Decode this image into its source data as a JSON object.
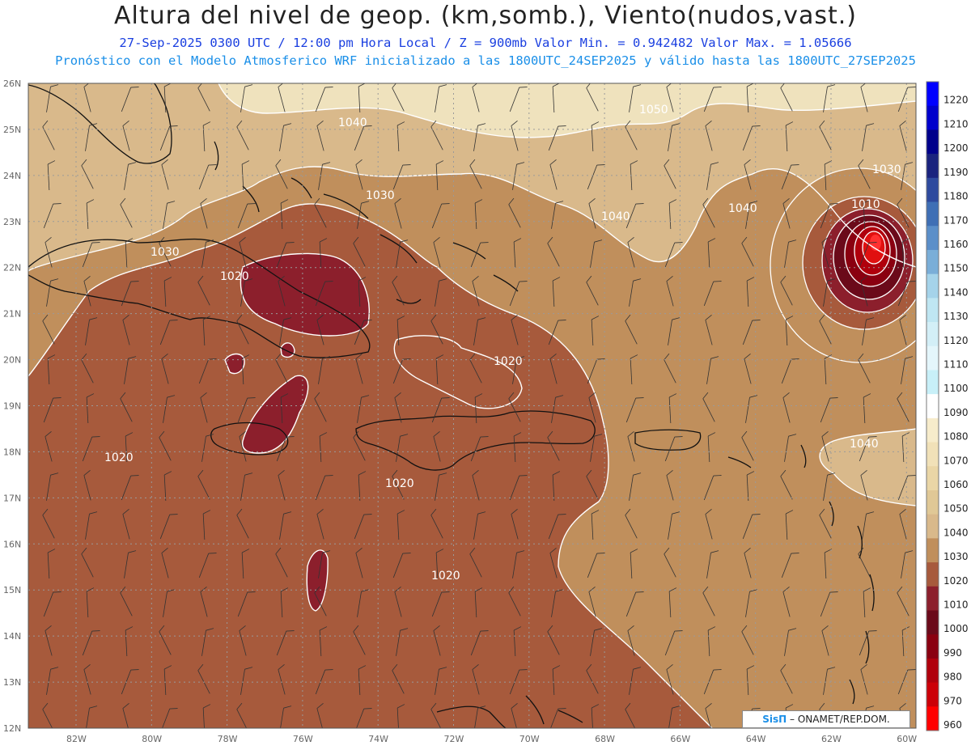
{
  "header": {
    "title": "Altura del nivel de geop. (km,somb.), Viento(nudos,vast.)",
    "subtitle": "27-Sep-2025  0300 UTC / 12:00 pm Hora Local / Z = 900mb   Valor Min. = 0.942482  Valor Max. = 1.05666",
    "model_line": "Pronóstico con el Modelo Atmosferico WRF inicializado a las 1800UTC_24SEP2025 y válido hasta las  1800UTC_27SEP2025"
  },
  "map": {
    "lat_labels": [
      "26N",
      "25N",
      "24N",
      "23N",
      "22N",
      "21N",
      "20N",
      "19N",
      "18N",
      "17N",
      "16N",
      "15N",
      "14N",
      "13N",
      "12N"
    ],
    "lon_labels": [
      "82W",
      "80W",
      "78W",
      "76W",
      "74W",
      "72W",
      "70W",
      "68W",
      "66W",
      "64W",
      "62W",
      "60W"
    ],
    "contour_labels": [
      {
        "text": "1040",
        "id": "c1040-nw"
      },
      {
        "text": "1050",
        "id": "c1050-n"
      },
      {
        "text": "1030",
        "id": "c1030-bahamas"
      },
      {
        "text": "1040",
        "id": "c1040-center"
      },
      {
        "text": "1040",
        "id": "c1040-ne"
      },
      {
        "text": "1030",
        "id": "c1030-ne"
      },
      {
        "text": "1010",
        "id": "c1010-hurricane"
      },
      {
        "text": "1030",
        "id": "c1030-w"
      },
      {
        "text": "1020",
        "id": "c1020-cuba"
      },
      {
        "text": "1020",
        "id": "c1020-hisp"
      },
      {
        "text": "1020",
        "id": "c1020-sw"
      },
      {
        "text": "1020",
        "id": "c1020-s1"
      },
      {
        "text": "1020",
        "id": "c1020-s2"
      },
      {
        "text": "1040",
        "id": "c1040-e"
      }
    ],
    "colors": {
      "c1050": "#efe2bd",
      "c1040": "#d9b98b",
      "c1030": "#c08f5c",
      "c1020": "#a75a3c",
      "c1010": "#8c1f2c",
      "c1000": "#6b0a1a",
      "c990": "#8a0010",
      "core": "#e01010",
      "coast": "#111111",
      "contour": "#ffffff",
      "grid": "#bbbbbb"
    }
  },
  "colorbar": {
    "levels": [
      "1220",
      "1210",
      "1200",
      "1190",
      "1180",
      "1170",
      "1160",
      "1150",
      "1140",
      "1130",
      "1120",
      "1110",
      "1100",
      "1090",
      "1080",
      "1070",
      "1060",
      "1050",
      "1040",
      "1030",
      "1020",
      "1010",
      "1000",
      "990",
      "980",
      "970",
      "960"
    ],
    "colors": [
      "#0000ff",
      "#0000cc",
      "#00008b",
      "#1a237e",
      "#2e4a9e",
      "#3f6fb5",
      "#5b8fc9",
      "#7aaed8",
      "#a5d3ea",
      "#bfe6f2",
      "#d3eff7",
      "#e4f6fb",
      "#c8f0f8",
      "#ffffff",
      "#f7eccb",
      "#f1e1b8",
      "#ead6a6",
      "#e0c896",
      "#d9b98b",
      "#c08f5c",
      "#a75a3c",
      "#8c1f2c",
      "#6b0a1a",
      "#8a0010",
      "#b0000c",
      "#cc0008",
      "#ff0000"
    ]
  },
  "credit": {
    "brand": "SisΠ",
    "text": "– ONAMET/REP.DOM."
  }
}
